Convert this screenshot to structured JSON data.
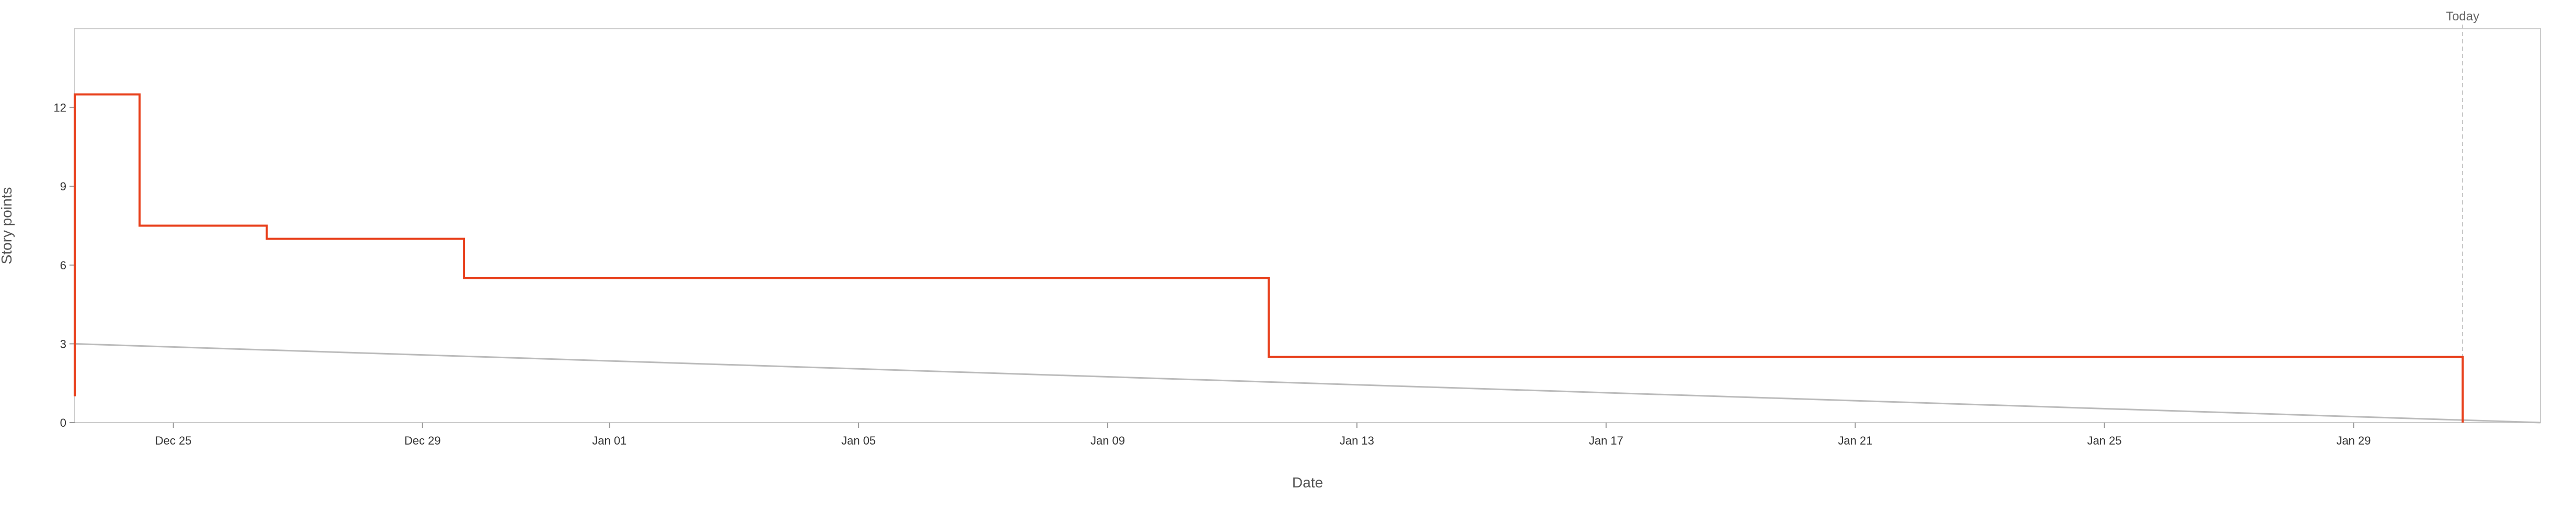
{
  "chart_data": {
    "type": "line",
    "xlabel": "Date",
    "ylabel": "Story points",
    "x_ticks": [
      "Dec 25",
      "Dec 29",
      "Jan 01",
      "Jan 05",
      "Jan 09",
      "Jan 13",
      "Jan 17",
      "Jan 21",
      "Jan 25",
      "Jan 29"
    ],
    "y_ticks": [
      "0",
      "3",
      "6",
      "9",
      "12"
    ],
    "today_label": "Today",
    "xlim": [
      "2023-12-23T10:00",
      "2024-02-01T00:00"
    ],
    "ylim": [
      0,
      15
    ],
    "grid": false,
    "colors": {
      "remaining": "#e8401c",
      "guideline": "#bbbbbb",
      "today": "#c8c8c8",
      "frame": "#cccccc"
    },
    "series": [
      {
        "kind": "step",
        "points": [
          [
            "2023-12-23T10:00",
            1
          ],
          [
            "2023-12-23T10:00",
            12.5
          ],
          [
            "2023-12-24T11:00",
            12.5
          ],
          [
            "2023-12-24T11:00",
            7.5
          ],
          [
            "2023-12-26T12:00",
            7.5
          ],
          [
            "2023-12-26T12:00",
            7
          ],
          [
            "2023-12-29T16:00",
            7
          ],
          [
            "2023-12-29T16:00",
            5.5
          ],
          [
            "2024-01-11T14:00",
            5.5
          ],
          [
            "2024-01-11T14:00",
            2.5
          ],
          [
            "2024-01-30T18:00",
            2.5
          ],
          [
            "2024-01-30T18:00",
            0
          ]
        ]
      },
      {
        "kind": "straight",
        "points": [
          [
            "2023-12-23T10:00",
            3
          ],
          [
            "2024-02-01T00:00",
            0
          ]
        ]
      }
    ],
    "today": "2024-01-30T18:00"
  }
}
